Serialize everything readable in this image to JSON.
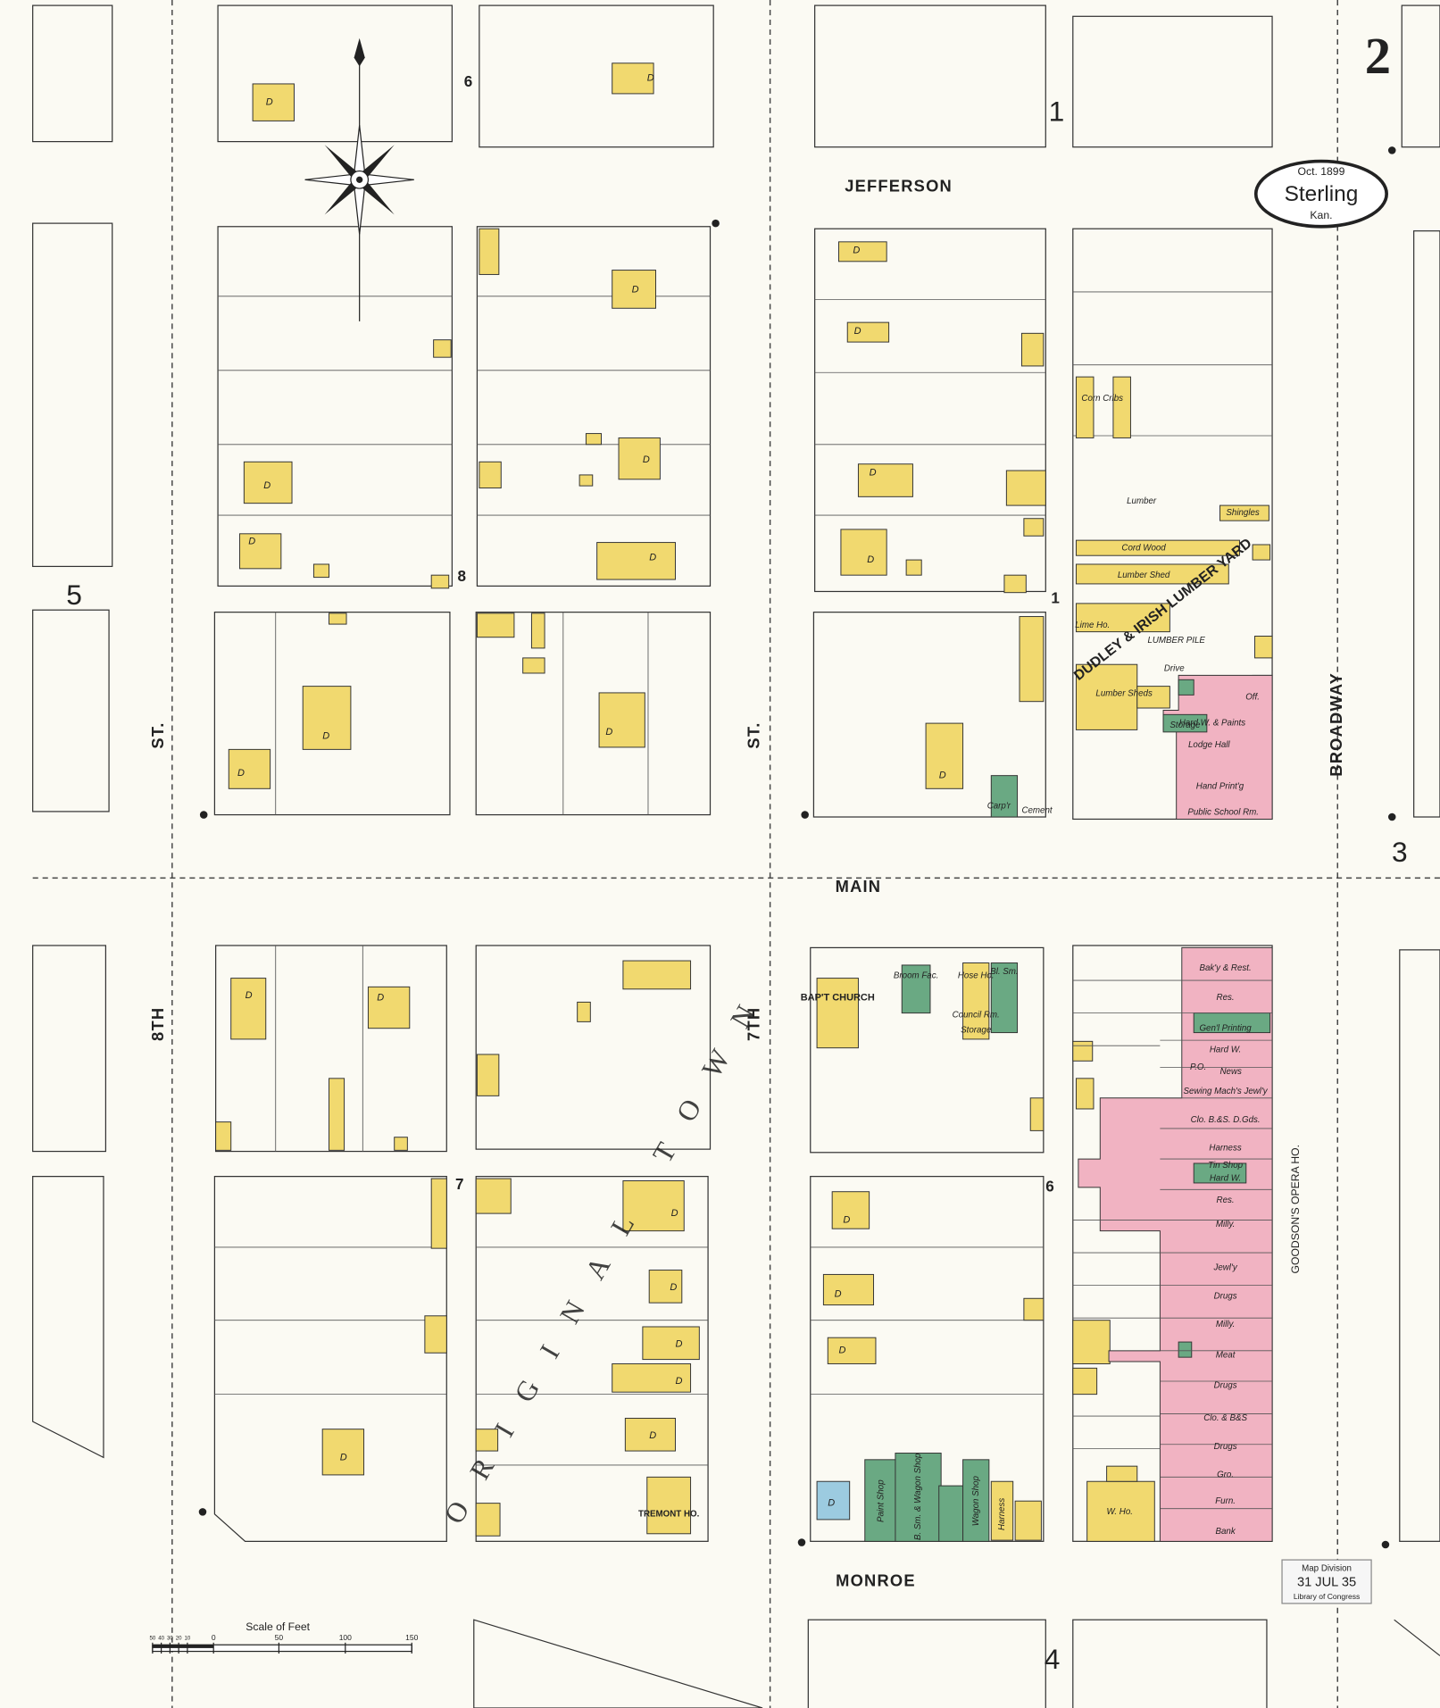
{
  "sheet": "2",
  "key": {
    "date": "Oct. 1899",
    "town": "Sterling",
    "state": "Kan."
  },
  "streets": {
    "jefferson": "Jefferson",
    "main": "Main",
    "monroe": "Monroe",
    "eighth": "8th",
    "seventh": "7th",
    "st": "St.",
    "broadway": "Broadway"
  },
  "block_numbers": [
    "1",
    "3",
    "4",
    "5",
    "6",
    "7",
    "8"
  ],
  "overlay_text": {
    "original_town": "Original Town",
    "lumber_yard": "Dudley & Irish Lumber Yard"
  },
  "dwelling": "D",
  "buildings": {
    "church": "Bap't Church",
    "hotel": "Tremont Ho.",
    "opera": "Goodson's Opera Ho.",
    "broom": "Broom Fac.",
    "hose": "Hose Ho.",
    "council": "Council Rm.",
    "storage": "Storage",
    "blacksmith": "Bl. Sm.",
    "paint": "Paint Shop",
    "wagon": "B. Sm. & Wagon Shop",
    "harness": "Harness",
    "wagon_shop": "Wagon Shop",
    "lumber": "Lumber",
    "cord_wood": "Cord Wood",
    "lumber_shed": "Lumber Shed",
    "lime": "Lime Ho.",
    "pile": "Lumber Pile",
    "drive": "Drive",
    "sheds": "Lumber Sheds",
    "corn": "Corn Cribs",
    "shingles": "Shingles",
    "office": "Off.",
    "hardware_paints": "Hard W. & Paints",
    "lodge": "Lodge Hall",
    "hand_print": "Hand Print'g",
    "school": "Public School Rm.",
    "carp": "Carp'r",
    "cement": "Cement",
    "wh": "W. Ho."
  },
  "stores": [
    "Bak'y & Rest.",
    "Res.",
    "Gen'l Printing",
    "Hard W.",
    "P.O.",
    "News",
    "Sewing Mach's Jewl'y",
    "Clo. B.&S. D.Gds.",
    "Harness",
    "Tin Shop",
    "Hard W.",
    "Res.",
    "Milly.",
    "Jewl'y",
    "Drugs",
    "Milly.",
    "Meat",
    "Drugs",
    "Clo. & B&S",
    "Drugs",
    "Gro.",
    "Furn.",
    "Bank"
  ],
  "scale": {
    "title": "Scale of Feet",
    "ticks": [
      "50",
      "40",
      "30",
      "20",
      "10",
      "0",
      "50",
      "100",
      "150"
    ]
  },
  "stamp": [
    "Map Division",
    "31 JUL 35",
    "Library of Congress"
  ]
}
